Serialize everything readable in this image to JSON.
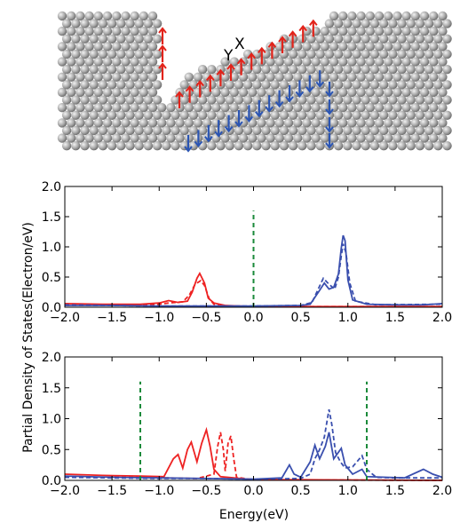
{
  "figure": {
    "ylabel_shared": "Partial Density of States(Electron/eV)",
    "xlabel_bottom": "Energy(eV)"
  },
  "structure": {
    "labels": [
      "Y",
      "X"
    ],
    "atom_color": "#9a9a9a",
    "spin_up_color": "#e2231a",
    "spin_down_color": "#2b55b3"
  },
  "colors": {
    "red": "#ee2222",
    "blue": "#3a4fae",
    "green_dash": "#1a8a3a"
  },
  "chart_data": [
    {
      "type": "line",
      "panel": "top",
      "xlabel": "",
      "ylabel": "",
      "xlim": [
        -2.0,
        2.0
      ],
      "ylim": [
        0.0,
        2.0
      ],
      "xticks": [
        "−2.0",
        "−1.5",
        "−1.0",
        "−0.5",
        "0.0",
        "0.5",
        "1.0",
        "1.5",
        "2.0"
      ],
      "yticks": [
        "0.0",
        "0.5",
        "1.0",
        "1.5",
        "2.0"
      ],
      "vlines": [
        {
          "x": 0.0,
          "y_top": 1.6,
          "color": "green"
        }
      ],
      "series": [
        {
          "color": "red",
          "style": "solid",
          "points": [
            [
              -2.0,
              0.06
            ],
            [
              -1.6,
              0.05
            ],
            [
              -1.2,
              0.05
            ],
            [
              -1.0,
              0.07
            ],
            [
              -0.9,
              0.11
            ],
            [
              -0.8,
              0.08
            ],
            [
              -0.7,
              0.1
            ],
            [
              -0.65,
              0.25
            ],
            [
              -0.6,
              0.48
            ],
            [
              -0.57,
              0.56
            ],
            [
              -0.52,
              0.4
            ],
            [
              -0.48,
              0.15
            ],
            [
              -0.42,
              0.07
            ],
            [
              -0.3,
              0.03
            ],
            [
              0.0,
              0.01
            ],
            [
              0.5,
              0.01
            ],
            [
              1.0,
              0.01
            ],
            [
              2.0,
              0.01
            ]
          ]
        },
        {
          "color": "red",
          "style": "dashed",
          "points": [
            [
              -2.0,
              0.03
            ],
            [
              -1.5,
              0.03
            ],
            [
              -1.0,
              0.05
            ],
            [
              -0.9,
              0.07
            ],
            [
              -0.75,
              0.09
            ],
            [
              -0.68,
              0.2
            ],
            [
              -0.62,
              0.38
            ],
            [
              -0.56,
              0.44
            ],
            [
              -0.52,
              0.36
            ],
            [
              -0.47,
              0.14
            ],
            [
              -0.42,
              0.05
            ],
            [
              -0.3,
              0.02
            ],
            [
              0.0,
              0.01
            ],
            [
              2.0,
              0.01
            ]
          ]
        },
        {
          "color": "blue",
          "style": "solid",
          "points": [
            [
              -2.0,
              0.03
            ],
            [
              -1.5,
              0.03
            ],
            [
              -1.0,
              0.02
            ],
            [
              -0.5,
              0.02
            ],
            [
              0.0,
              0.02
            ],
            [
              0.5,
              0.03
            ],
            [
              0.6,
              0.05
            ],
            [
              0.7,
              0.28
            ],
            [
              0.75,
              0.4
            ],
            [
              0.8,
              0.3
            ],
            [
              0.85,
              0.33
            ],
            [
              0.9,
              0.55
            ],
            [
              0.93,
              0.98
            ],
            [
              0.95,
              1.19
            ],
            [
              0.97,
              1.1
            ],
            [
              1.0,
              0.45
            ],
            [
              1.05,
              0.12
            ],
            [
              1.2,
              0.05
            ],
            [
              1.5,
              0.04
            ],
            [
              1.8,
              0.04
            ],
            [
              1.9,
              0.05
            ],
            [
              2.0,
              0.06
            ]
          ]
        },
        {
          "color": "blue",
          "style": "dashed",
          "points": [
            [
              -2.0,
              0.04
            ],
            [
              -1.5,
              0.03
            ],
            [
              -1.0,
              0.02
            ],
            [
              0.0,
              0.02
            ],
            [
              0.5,
              0.03
            ],
            [
              0.62,
              0.08
            ],
            [
              0.7,
              0.35
            ],
            [
              0.74,
              0.48
            ],
            [
              0.8,
              0.38
            ],
            [
              0.86,
              0.3
            ],
            [
              0.9,
              0.5
            ],
            [
              0.93,
              0.85
            ],
            [
              0.95,
              1.05
            ],
            [
              0.98,
              0.9
            ],
            [
              1.02,
              0.4
            ],
            [
              1.08,
              0.1
            ],
            [
              1.3,
              0.04
            ],
            [
              2.0,
              0.05
            ]
          ]
        }
      ]
    },
    {
      "type": "line",
      "panel": "bottom",
      "xlabel": "Energy(eV)",
      "ylabel": "",
      "xlim": [
        -2.0,
        2.0
      ],
      "ylim": [
        0.0,
        2.0
      ],
      "xticks": [
        "−2.0",
        "−1.5",
        "−1.0",
        "−0.5",
        "0.0",
        "0.5",
        "1.0",
        "1.5",
        "2.0"
      ],
      "yticks": [
        "0.0",
        "0.5",
        "1.0",
        "1.5",
        "2.0"
      ],
      "vlines": [
        {
          "x": -1.2,
          "y_top": 1.6,
          "color": "green"
        },
        {
          "x": 1.2,
          "y_top": 1.6,
          "color": "green"
        }
      ],
      "series": [
        {
          "color": "red",
          "style": "solid",
          "points": [
            [
              -2.0,
              0.1
            ],
            [
              -1.6,
              0.08
            ],
            [
              -1.2,
              0.07
            ],
            [
              -0.95,
              0.06
            ],
            [
              -0.85,
              0.35
            ],
            [
              -0.8,
              0.42
            ],
            [
              -0.75,
              0.2
            ],
            [
              -0.7,
              0.5
            ],
            [
              -0.66,
              0.62
            ],
            [
              -0.6,
              0.3
            ],
            [
              -0.55,
              0.6
            ],
            [
              -0.5,
              0.82
            ],
            [
              -0.46,
              0.55
            ],
            [
              -0.42,
              0.18
            ],
            [
              -0.35,
              0.06
            ],
            [
              0.0,
              0.01
            ],
            [
              0.5,
              0.01
            ],
            [
              2.0,
              0.0
            ]
          ]
        },
        {
          "color": "red",
          "style": "dashed",
          "points": [
            [
              -2.0,
              0.05
            ],
            [
              -1.5,
              0.05
            ],
            [
              -1.2,
              0.05
            ],
            [
              -0.9,
              0.04
            ],
            [
              -0.6,
              0.03
            ],
            [
              -0.42,
              0.1
            ],
            [
              -0.38,
              0.55
            ],
            [
              -0.35,
              0.78
            ],
            [
              -0.32,
              0.5
            ],
            [
              -0.3,
              0.15
            ],
            [
              -0.27,
              0.6
            ],
            [
              -0.24,
              0.72
            ],
            [
              -0.21,
              0.35
            ],
            [
              -0.18,
              0.05
            ],
            [
              0.0,
              0.01
            ],
            [
              2.0,
              0.0
            ]
          ]
        },
        {
          "color": "blue",
          "style": "solid",
          "points": [
            [
              -2.0,
              0.07
            ],
            [
              -1.5,
              0.05
            ],
            [
              -1.0,
              0.04
            ],
            [
              -0.5,
              0.03
            ],
            [
              0.0,
              0.02
            ],
            [
              0.3,
              0.04
            ],
            [
              0.38,
              0.25
            ],
            [
              0.43,
              0.1
            ],
            [
              0.5,
              0.05
            ],
            [
              0.6,
              0.3
            ],
            [
              0.65,
              0.57
            ],
            [
              0.7,
              0.35
            ],
            [
              0.76,
              0.55
            ],
            [
              0.8,
              0.78
            ],
            [
              0.85,
              0.35
            ],
            [
              0.93,
              0.52
            ],
            [
              0.97,
              0.25
            ],
            [
              1.05,
              0.1
            ],
            [
              1.15,
              0.18
            ],
            [
              1.2,
              0.06
            ],
            [
              1.4,
              0.05
            ],
            [
              1.6,
              0.04
            ],
            [
              1.8,
              0.18
            ],
            [
              1.9,
              0.1
            ],
            [
              2.0,
              0.05
            ]
          ]
        },
        {
          "color": "blue",
          "style": "dashed",
          "points": [
            [
              -2.0,
              0.05
            ],
            [
              -1.5,
              0.04
            ],
            [
              -1.0,
              0.03
            ],
            [
              -0.5,
              0.03
            ],
            [
              0.0,
              0.02
            ],
            [
              0.5,
              0.03
            ],
            [
              0.6,
              0.1
            ],
            [
              0.65,
              0.35
            ],
            [
              0.7,
              0.5
            ],
            [
              0.75,
              0.7
            ],
            [
              0.8,
              1.15
            ],
            [
              0.83,
              0.9
            ],
            [
              0.87,
              0.45
            ],
            [
              0.92,
              0.3
            ],
            [
              0.97,
              0.2
            ],
            [
              1.05,
              0.22
            ],
            [
              1.15,
              0.4
            ],
            [
              1.2,
              0.18
            ],
            [
              1.3,
              0.05
            ],
            [
              1.5,
              0.04
            ],
            [
              2.0,
              0.04
            ]
          ]
        }
      ]
    }
  ]
}
